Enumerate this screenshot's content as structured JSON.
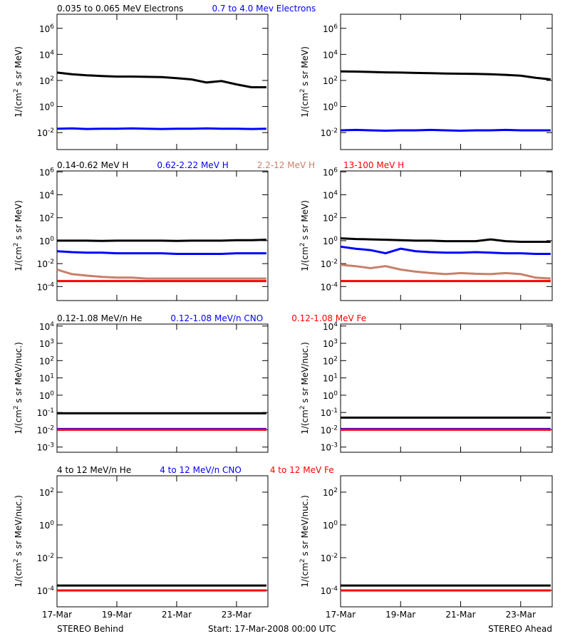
{
  "time_axis": {
    "x": [
      0,
      0.5,
      1,
      1.5,
      2,
      2.5,
      3,
      3.5,
      4,
      4.5,
      5,
      5.5,
      6,
      6.5,
      7
    ],
    "xlim": [
      0,
      7.05
    ],
    "xticks": [
      {
        "value": 0,
        "label": "17-Mar"
      },
      {
        "value": 2,
        "label": "19-Mar"
      },
      {
        "value": 4,
        "label": "21-Mar"
      },
      {
        "value": 6,
        "label": "23-Mar"
      }
    ]
  },
  "footer": {
    "left": "STEREO Behind",
    "center": "Start: 17-Mar-2008 00:00 UTC",
    "right": "STEREO Ahead"
  },
  "chart_data": [
    {
      "type": "line",
      "log_y": true,
      "y_label": "1/(cm^2 s sr MeV)",
      "ylim": [
        0.0005,
        12000000
      ],
      "yticks": [
        {
          "value": 1000000,
          "label": "10^6"
        },
        {
          "value": 10000,
          "label": "10^4"
        },
        {
          "value": 100,
          "label": "10^2"
        },
        {
          "value": 1,
          "label": "10^0"
        },
        {
          "value": 0.01,
          "label": "10^-2"
        }
      ],
      "series": [
        {
          "name": "0.035 to 0.065 MeV Electrons",
          "color": "#000000",
          "values": [
            400,
            300,
            250,
            220,
            200,
            200,
            190,
            180,
            150,
            120,
            70,
            90,
            50,
            30,
            30
          ]
        },
        {
          "name": "0.7 to 4.0 Mev Electrons",
          "color": "#0000ff",
          "values": [
            0.02,
            0.021,
            0.019,
            0.02,
            0.02,
            0.021,
            0.02,
            0.019,
            0.02,
            0.02,
            0.021,
            0.02,
            0.02,
            0.019,
            0.02
          ]
        }
      ]
    },
    {
      "type": "line",
      "log_y": true,
      "y_label": "1/(cm^2 s sr MeV)",
      "ylim": [
        0.0005,
        12000000
      ],
      "yticks": [
        {
          "value": 1000000,
          "label": "10^6"
        },
        {
          "value": 10000,
          "label": "10^4"
        },
        {
          "value": 100,
          "label": "10^2"
        },
        {
          "value": 1,
          "label": "10^0"
        },
        {
          "value": 0.01,
          "label": "10^-2"
        }
      ],
      "series": [
        {
          "color": "#000000",
          "values": [
            500,
            480,
            450,
            420,
            400,
            380,
            360,
            340,
            330,
            320,
            300,
            270,
            230,
            160,
            120
          ]
        },
        {
          "color": "#0000ff",
          "values": [
            0.015,
            0.016,
            0.015,
            0.014,
            0.015,
            0.015,
            0.016,
            0.015,
            0.014,
            0.015,
            0.015,
            0.016,
            0.015,
            0.015,
            0.015
          ]
        }
      ]
    },
    {
      "type": "line",
      "log_y": true,
      "y_label": "1/(cm^2 s sr MeV)",
      "ylim": [
        6e-06,
        1200000
      ],
      "yticks": [
        {
          "value": 1000000,
          "label": "10^6"
        },
        {
          "value": 10000,
          "label": "10^4"
        },
        {
          "value": 100,
          "label": "10^2"
        },
        {
          "value": 1,
          "label": "10^0"
        },
        {
          "value": 0.01,
          "label": "10^-2"
        },
        {
          "value": 0.0001,
          "label": "10^-4"
        }
      ],
      "series": [
        {
          "name": "0.14-0.62 MeV H",
          "color": "#000000",
          "values": [
            1,
            1,
            1,
            0.95,
            1,
            1,
            1,
            1,
            0.95,
            1,
            1,
            1,
            1.1,
            1.1,
            1.2
          ]
        },
        {
          "name": "0.62-2.22 MeV H",
          "color": "#0000ff",
          "values": [
            0.12,
            0.1,
            0.09,
            0.09,
            0.08,
            0.08,
            0.08,
            0.08,
            0.07,
            0.07,
            0.07,
            0.07,
            0.08,
            0.08,
            0.08
          ]
        },
        {
          "name": "2.2-12 MeV H",
          "color": "#c8806a",
          "values": [
            0.003,
            0.0012,
            0.0009,
            0.0007,
            0.0006,
            0.0006,
            0.0005,
            0.0005,
            0.0005,
            0.0005,
            0.0005,
            0.0005,
            0.0005,
            0.0005,
            0.0005
          ]
        },
        {
          "name": "13-100 MeV H",
          "color": "#ff0000",
          "values": [
            0.0003,
            0.0003,
            0.0003,
            0.0003,
            0.0003,
            0.0003,
            0.0003,
            0.0003,
            0.0003,
            0.0003,
            0.0003,
            0.0003,
            0.0003,
            0.0003,
            0.0003
          ]
        }
      ]
    },
    {
      "type": "line",
      "log_y": true,
      "y_label": "1/(cm^2 s sr MeV)",
      "ylim": [
        6e-06,
        1200000
      ],
      "yticks": [
        {
          "value": 1000000,
          "label": "10^6"
        },
        {
          "value": 10000,
          "label": "10^4"
        },
        {
          "value": 100,
          "label": "10^2"
        },
        {
          "value": 1,
          "label": "10^0"
        },
        {
          "value": 0.01,
          "label": "10^-2"
        },
        {
          "value": 0.0001,
          "label": "10^-4"
        }
      ],
      "series": [
        {
          "color": "#000000",
          "values": [
            1.6,
            1.4,
            1.3,
            1.2,
            1.1,
            1,
            1,
            0.9,
            0.9,
            0.9,
            1.3,
            0.9,
            0.8,
            0.8,
            0.8
          ]
        },
        {
          "color": "#0000ff",
          "values": [
            0.3,
            0.2,
            0.15,
            0.08,
            0.2,
            0.12,
            0.1,
            0.09,
            0.09,
            0.1,
            0.09,
            0.08,
            0.08,
            0.07,
            0.07
          ]
        },
        {
          "color": "#c8806a",
          "values": [
            0.008,
            0.006,
            0.004,
            0.006,
            0.003,
            0.002,
            0.0015,
            0.0012,
            0.0015,
            0.0013,
            0.0012,
            0.0015,
            0.0012,
            0.0006,
            0.0005
          ]
        },
        {
          "color": "#ff0000",
          "values": [
            0.0003,
            0.0003,
            0.0003,
            0.0003,
            0.0003,
            0.0003,
            0.0003,
            0.0003,
            0.0003,
            0.0003,
            0.0003,
            0.0003,
            0.0003,
            0.0003,
            0.0003
          ]
        }
      ]
    },
    {
      "type": "line",
      "log_y": true,
      "y_label": "1/(cm^2 s sr MeV/nuc.)",
      "ylim": [
        0.0005,
        13000
      ],
      "yticks": [
        {
          "value": 10000,
          "label": "10^4"
        },
        {
          "value": 1000,
          "label": "10^3"
        },
        {
          "value": 100,
          "label": "10^2"
        },
        {
          "value": 10,
          "label": "10^1"
        },
        {
          "value": 1,
          "label": "10^0"
        },
        {
          "value": 0.1,
          "label": "10^-1"
        },
        {
          "value": 0.01,
          "label": "10^-2"
        },
        {
          "value": 0.001,
          "label": "10^-3"
        }
      ],
      "series": [
        {
          "name": "0.12-1.08 MeV/n He",
          "color": "#000000",
          "values": [
            0.09,
            0.09,
            0.09,
            0.09,
            0.09,
            0.09,
            0.09,
            0.09,
            0.09,
            0.09,
            0.09,
            0.09,
            0.09,
            0.09,
            0.09
          ]
        },
        {
          "name": "0.12-1.08 MeV/n CNO",
          "color": "#0000ff",
          "values": [
            0.011,
            0.011,
            0.011,
            0.011,
            0.011,
            0.011,
            0.011,
            0.011,
            0.011,
            0.011,
            0.011,
            0.011,
            0.011,
            0.011,
            0.011
          ]
        },
        {
          "name": "0.12-1.08 MeV Fe",
          "color": "#ff0000",
          "values": [
            0.01,
            0.01,
            0.01,
            0.01,
            0.01,
            0.01,
            0.01,
            0.01,
            0.01,
            0.01,
            0.01,
            0.01,
            0.01,
            0.01,
            0.01
          ]
        }
      ]
    },
    {
      "type": "line",
      "log_y": true,
      "y_label": "1/(cm^2 s sr MeV/nuc.)",
      "ylim": [
        0.0005,
        13000
      ],
      "yticks": [
        {
          "value": 10000,
          "label": "10^4"
        },
        {
          "value": 1000,
          "label": "10^3"
        },
        {
          "value": 100,
          "label": "10^2"
        },
        {
          "value": 10,
          "label": "10^1"
        },
        {
          "value": 1,
          "label": "10^0"
        },
        {
          "value": 0.1,
          "label": "10^-1"
        },
        {
          "value": 0.01,
          "label": "10^-2"
        },
        {
          "value": 0.001,
          "label": "10^-3"
        }
      ],
      "series": [
        {
          "color": "#000000",
          "values": [
            0.05,
            0.05,
            0.05,
            0.05,
            0.05,
            0.05,
            0.05,
            0.05,
            0.05,
            0.05,
            0.05,
            0.05,
            0.05,
            0.05,
            0.05
          ]
        },
        {
          "color": "#0000ff",
          "values": [
            0.011,
            0.011,
            0.011,
            0.011,
            0.011,
            0.011,
            0.011,
            0.011,
            0.011,
            0.011,
            0.011,
            0.011,
            0.011,
            0.011,
            0.011
          ]
        },
        {
          "color": "#ff0000",
          "values": [
            0.01,
            0.01,
            0.01,
            0.01,
            0.01,
            0.01,
            0.01,
            0.01,
            0.01,
            0.01,
            0.01,
            0.01,
            0.01,
            0.01,
            0.01
          ]
        }
      ]
    },
    {
      "type": "line",
      "log_y": true,
      "y_label": "1/(cm^2 s sr MeV/nuc.)",
      "ylim": [
        1e-05,
        1000
      ],
      "yticks": [
        {
          "value": 100,
          "label": "10^2"
        },
        {
          "value": 1,
          "label": "10^0"
        },
        {
          "value": 0.01,
          "label": "10^-2"
        },
        {
          "value": 0.0001,
          "label": "10^-4"
        }
      ],
      "series": [
        {
          "name": "4 to 12 MeV/n He",
          "color": "#000000",
          "values": [
            0.0002,
            0.0002,
            0.0002,
            0.0002,
            0.0002,
            0.0002,
            0.0002,
            0.0002,
            0.0002,
            0.0002,
            0.0002,
            0.0002,
            0.0002,
            0.0002,
            0.0002
          ]
        },
        {
          "name": "4 to 12 MeV/n CNO",
          "color": "#0000ff",
          "values": [
            0.0001,
            0.0001,
            0.0001,
            0.0001,
            0.0001,
            0.0001,
            0.0001,
            0.0001,
            0.0001,
            0.0001,
            0.0001,
            0.0001,
            0.0001,
            0.0001,
            0.0001
          ]
        },
        {
          "name": "4 to 12 MeV Fe",
          "color": "#ff0000",
          "values": [
            0.0001,
            0.0001,
            0.0001,
            0.0001,
            0.0001,
            0.0001,
            0.0001,
            0.0001,
            0.0001,
            0.0001,
            0.0001,
            0.0001,
            0.0001,
            0.0001,
            0.0001
          ]
        }
      ]
    },
    {
      "type": "line",
      "log_y": true,
      "y_label": "1/(cm^2 s sr MeV/nuc.)",
      "ylim": [
        1e-05,
        1000
      ],
      "yticks": [
        {
          "value": 100,
          "label": "10^2"
        },
        {
          "value": 1,
          "label": "10^0"
        },
        {
          "value": 0.01,
          "label": "10^-2"
        },
        {
          "value": 0.0001,
          "label": "10^-4"
        }
      ],
      "series": [
        {
          "color": "#000000",
          "values": [
            0.0002,
            0.0002,
            0.0002,
            0.0002,
            0.0002,
            0.0002,
            0.0002,
            0.0002,
            0.0002,
            0.0002,
            0.0002,
            0.0002,
            0.0002,
            0.0002,
            0.0002
          ]
        },
        {
          "color": "#0000ff",
          "values": [
            0.0001,
            0.0001,
            0.0001,
            0.0001,
            0.0001,
            0.0001,
            0.0001,
            0.0001,
            0.0001,
            0.0001,
            0.0001,
            0.0001,
            0.0001,
            0.0001,
            0.0001
          ]
        },
        {
          "color": "#ff0000",
          "values": [
            0.0001,
            0.0001,
            0.0001,
            0.0001,
            0.0001,
            0.0001,
            0.0001,
            0.0001,
            0.0001,
            0.0001,
            0.0001,
            0.0001,
            0.0001,
            0.0001,
            0.0001
          ]
        }
      ]
    }
  ]
}
